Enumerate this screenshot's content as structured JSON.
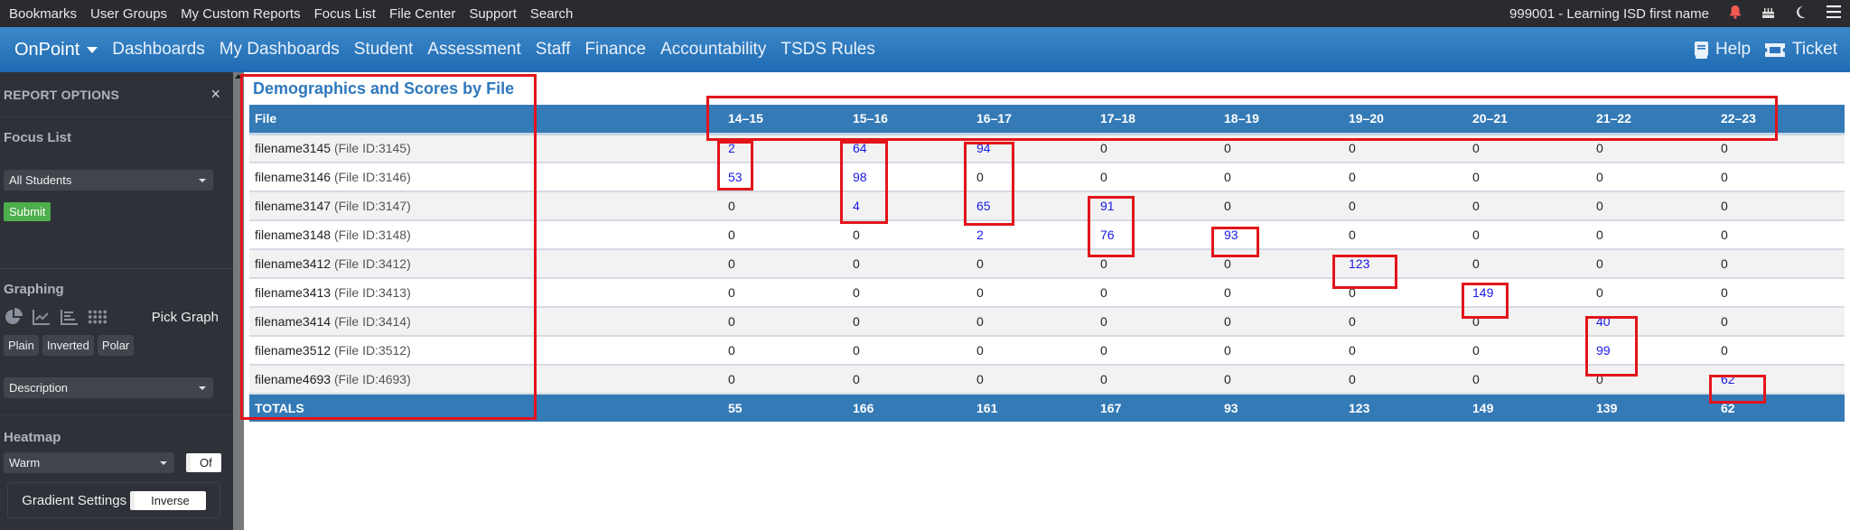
{
  "topbar": {
    "links": [
      "Bookmarks",
      "User Groups",
      "My Custom Reports",
      "Focus List",
      "File Center",
      "Support",
      "Search"
    ],
    "user": "999001 - Learning ISD first name",
    "icons": [
      "bell-icon",
      "birthday-cake-icon",
      "moon-icon",
      "hamburger-menu-icon"
    ]
  },
  "navbar": {
    "brand": "OnPoint",
    "items": [
      "Dashboards",
      "My Dashboards",
      "Student",
      "Assessment",
      "Staff",
      "Finance",
      "Accountability",
      "TSDS Rules"
    ],
    "help": "Help",
    "ticket": "Ticket"
  },
  "sidebar": {
    "title": "REPORT OPTIONS",
    "close": "×",
    "focus_list": {
      "title": "Focus List",
      "selected": "All Students",
      "submit": "Submit"
    },
    "graphing": {
      "title": "Graphing",
      "icons": [
        "pie-chart-icon",
        "line-chart-icon",
        "bar-chart-icon",
        "grid-icon"
      ],
      "pick_graph": "Pick Graph",
      "buttons": [
        "Plain",
        "Inverted",
        "Polar"
      ],
      "description_selected": "Description"
    },
    "heatmap": {
      "title": "Heatmap",
      "selected": "Warm",
      "toggle": "Of",
      "gradient_label": "Gradient Settings",
      "inverse": "Inverse"
    }
  },
  "report": {
    "title": "Demographics and Scores by File",
    "columns": [
      "File",
      "14–15",
      "15–16",
      "16–17",
      "17–18",
      "18–19",
      "19–20",
      "20–21",
      "21–22",
      "22–23"
    ],
    "rows": [
      {
        "name": "filename3145",
        "id": "(File ID:3145)",
        "values": [
          "2",
          "64",
          "94",
          "0",
          "0",
          "0",
          "0",
          "0",
          "0"
        ]
      },
      {
        "name": "filename3146",
        "id": "(File ID:3146)",
        "values": [
          "53",
          "98",
          "0",
          "0",
          "0",
          "0",
          "0",
          "0",
          "0"
        ]
      },
      {
        "name": "filename3147",
        "id": "(File ID:3147)",
        "values": [
          "0",
          "4",
          "65",
          "91",
          "0",
          "0",
          "0",
          "0",
          "0"
        ]
      },
      {
        "name": "filename3148",
        "id": "(File ID:3148)",
        "values": [
          "0",
          "0",
          "2",
          "76",
          "93",
          "0",
          "0",
          "0",
          "0"
        ]
      },
      {
        "name": "filename3412",
        "id": "(File ID:3412)",
        "values": [
          "0",
          "0",
          "0",
          "0",
          "0",
          "123",
          "0",
          "0",
          "0"
        ]
      },
      {
        "name": "filename3413",
        "id": "(File ID:3413)",
        "values": [
          "0",
          "0",
          "0",
          "0",
          "0",
          "0",
          "149",
          "0",
          "0"
        ]
      },
      {
        "name": "filename3414",
        "id": "(File ID:3414)",
        "values": [
          "0",
          "0",
          "0",
          "0",
          "0",
          "0",
          "0",
          "40",
          "0"
        ]
      },
      {
        "name": "filename3512",
        "id": "(File ID:3512)",
        "values": [
          "0",
          "0",
          "0",
          "0",
          "0",
          "0",
          "0",
          "99",
          "0"
        ]
      },
      {
        "name": "filename4693",
        "id": "(File ID:4693)",
        "values": [
          "0",
          "0",
          "0",
          "0",
          "0",
          "0",
          "0",
          "0",
          "62"
        ]
      }
    ],
    "totals_label": "TOTALS",
    "totals": [
      "55",
      "166",
      "161",
      "167",
      "93",
      "123",
      "149",
      "139",
      "62"
    ]
  },
  "colors": {
    "header_blue": "#347ab6",
    "link_blue": "#1a1ae6",
    "annotation_red": "#e3141b",
    "submit_green": "#4cae4c"
  }
}
